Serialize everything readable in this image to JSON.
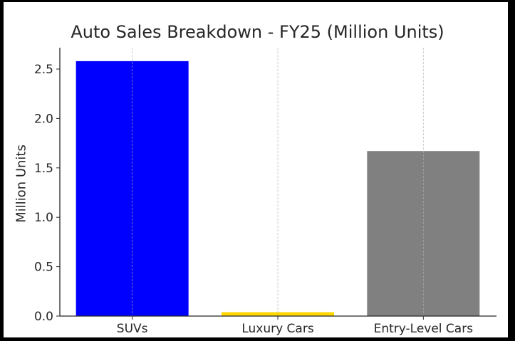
{
  "chart_data": {
    "type": "bar",
    "title": "Auto Sales Breakdown - FY25 (Million Units)",
    "xlabel": "",
    "ylabel": "Million Units",
    "categories": [
      "SUVs",
      "Luxury Cars",
      "Entry-Level Cars"
    ],
    "values": [
      2.58,
      0.04,
      1.67
    ],
    "colors": [
      "#0000FF",
      "#FFD700",
      "#808080"
    ],
    "ylim": [
      0,
      2.7
    ],
    "yticks": [
      0.0,
      0.5,
      1.0,
      1.5,
      2.0,
      2.5
    ],
    "ytick_labels": [
      "0.0",
      "0.5",
      "1.0",
      "1.5",
      "2.0",
      "2.5"
    ],
    "grid": {
      "x": true,
      "y": false,
      "style": "dashed"
    },
    "legend": null
  }
}
